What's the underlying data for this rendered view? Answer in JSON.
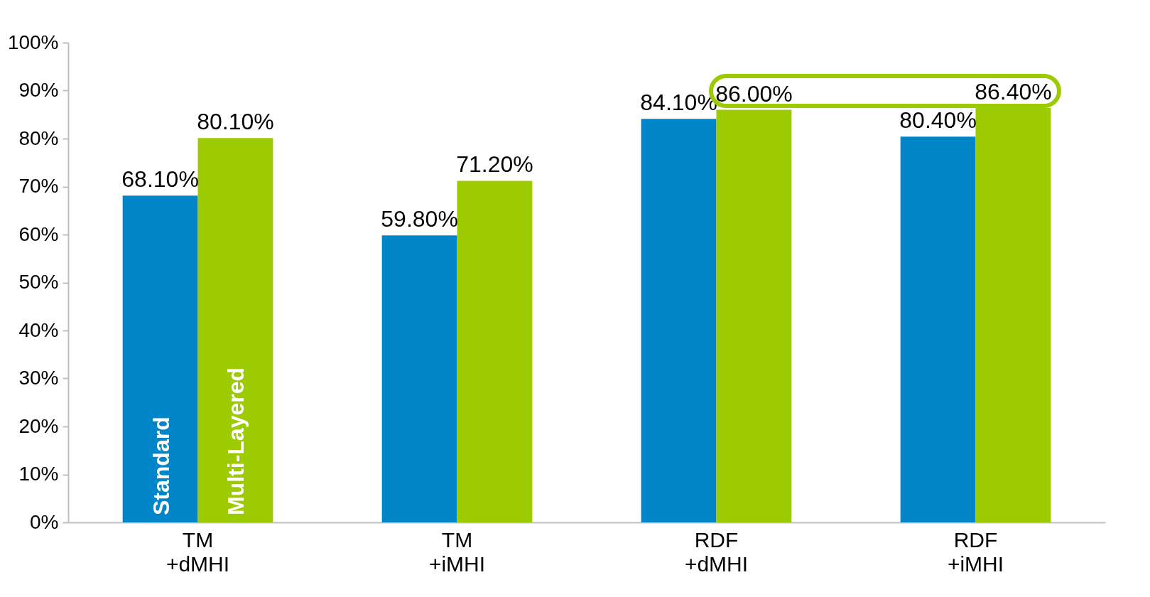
{
  "chart_data": {
    "type": "bar",
    "categories": [
      "TM\n+dMHI",
      "TM\n+iMHI",
      "RDF\n+dMHI",
      "RDF\n+iMHI"
    ],
    "series": [
      {
        "name": "Standard",
        "color": "#0085c8",
        "values": [
          68.1,
          59.8,
          84.1,
          80.4
        ],
        "value_labels": [
          "68.10%",
          "59.80%",
          "84.10%",
          "80.40%"
        ]
      },
      {
        "name": "Multi-Layered",
        "color": "#9bcb00",
        "values": [
          80.1,
          71.2,
          86.0,
          86.4
        ],
        "value_labels": [
          "80.10%",
          "71.20%",
          "86.00%",
          "86.40%"
        ]
      }
    ],
    "ylim": [
      0,
      100
    ],
    "yticks": [
      {
        "value": 0,
        "label": "0%"
      },
      {
        "value": 10,
        "label": "10%"
      },
      {
        "value": 20,
        "label": "20%"
      },
      {
        "value": 30,
        "label": "30%"
      },
      {
        "value": 40,
        "label": "40%"
      },
      {
        "value": 50,
        "label": "50%"
      },
      {
        "value": 60,
        "label": "60%"
      },
      {
        "value": 70,
        "label": "70%"
      },
      {
        "value": 80,
        "label": "80%"
      },
      {
        "value": 90,
        "label": "90%"
      },
      {
        "value": 100,
        "label": "100%"
      }
    ],
    "grid": false,
    "legend": false
  }
}
